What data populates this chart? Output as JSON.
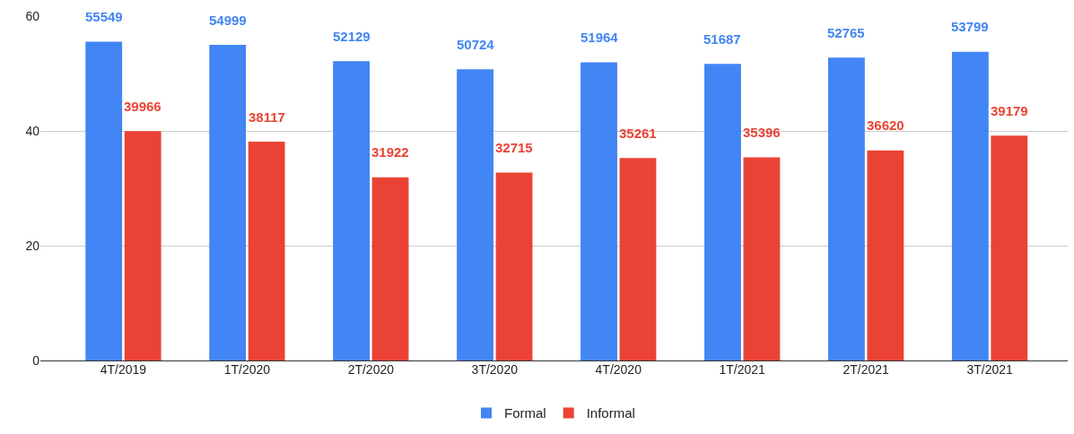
{
  "chart_data": {
    "type": "bar",
    "categories": [
      "4T/2019",
      "1T/2020",
      "2T/2020",
      "3T/2020",
      "4T/2020",
      "1T/2021",
      "2T/2021",
      "3T/2021"
    ],
    "series": [
      {
        "name": "Formal",
        "color": "#4285f4",
        "values": [
          55.549,
          54.999,
          52.129,
          50.724,
          51.964,
          51.687,
          52.765,
          53.799
        ]
      },
      {
        "name": "Informal",
        "color": "#ea4335",
        "values": [
          39.966,
          38.117,
          31.922,
          32.715,
          35.261,
          35.396,
          36.62,
          39.179
        ]
      }
    ],
    "annotations": [
      {
        "text": "55549",
        "x": "4T/2019",
        "y": 55.549
      },
      {
        "text": "54999",
        "x": "1T/2020",
        "y": 54.999
      },
      {
        "text": "52129",
        "x": "2T/2020",
        "y": 52.129
      },
      {
        "text": "50724",
        "x": "3T/2020",
        "y": 50.724
      },
      {
        "text": "51964",
        "x": "4T/2020",
        "y": 51.964
      },
      {
        "text": "51687",
        "x": "1T/2021",
        "y": 51.687
      },
      {
        "text": "52765",
        "x": "2T/2021",
        "y": 52.765
      },
      {
        "text": "53799",
        "x": "3T/2021",
        "y": 53.799
      },
      {
        "text": "39966",
        "x": "4T/2019",
        "y": 39.966
      },
      {
        "text": "38117",
        "x": "1T/2020",
        "y": 38.117
      },
      {
        "text": "31922",
        "x": "2T/2020",
        "y": 31.922
      },
      {
        "text": "32715",
        "x": "3T/2020",
        "y": 32.715
      },
      {
        "text": "35261",
        "x": "4T/2020",
        "y": 35.261
      },
      {
        "text": "35396",
        "x": "1T/2021",
        "y": 35.396
      },
      {
        "text": "36620",
        "x": "2T/2021",
        "y": 36.62
      },
      {
        "text": "39179",
        "x": "3T/2021",
        "y": 39.179
      }
    ],
    "ylim": [
      0,
      60
    ],
    "yticks": [
      0,
      20,
      40,
      60
    ],
    "grid": "y",
    "legend": "bottom"
  }
}
